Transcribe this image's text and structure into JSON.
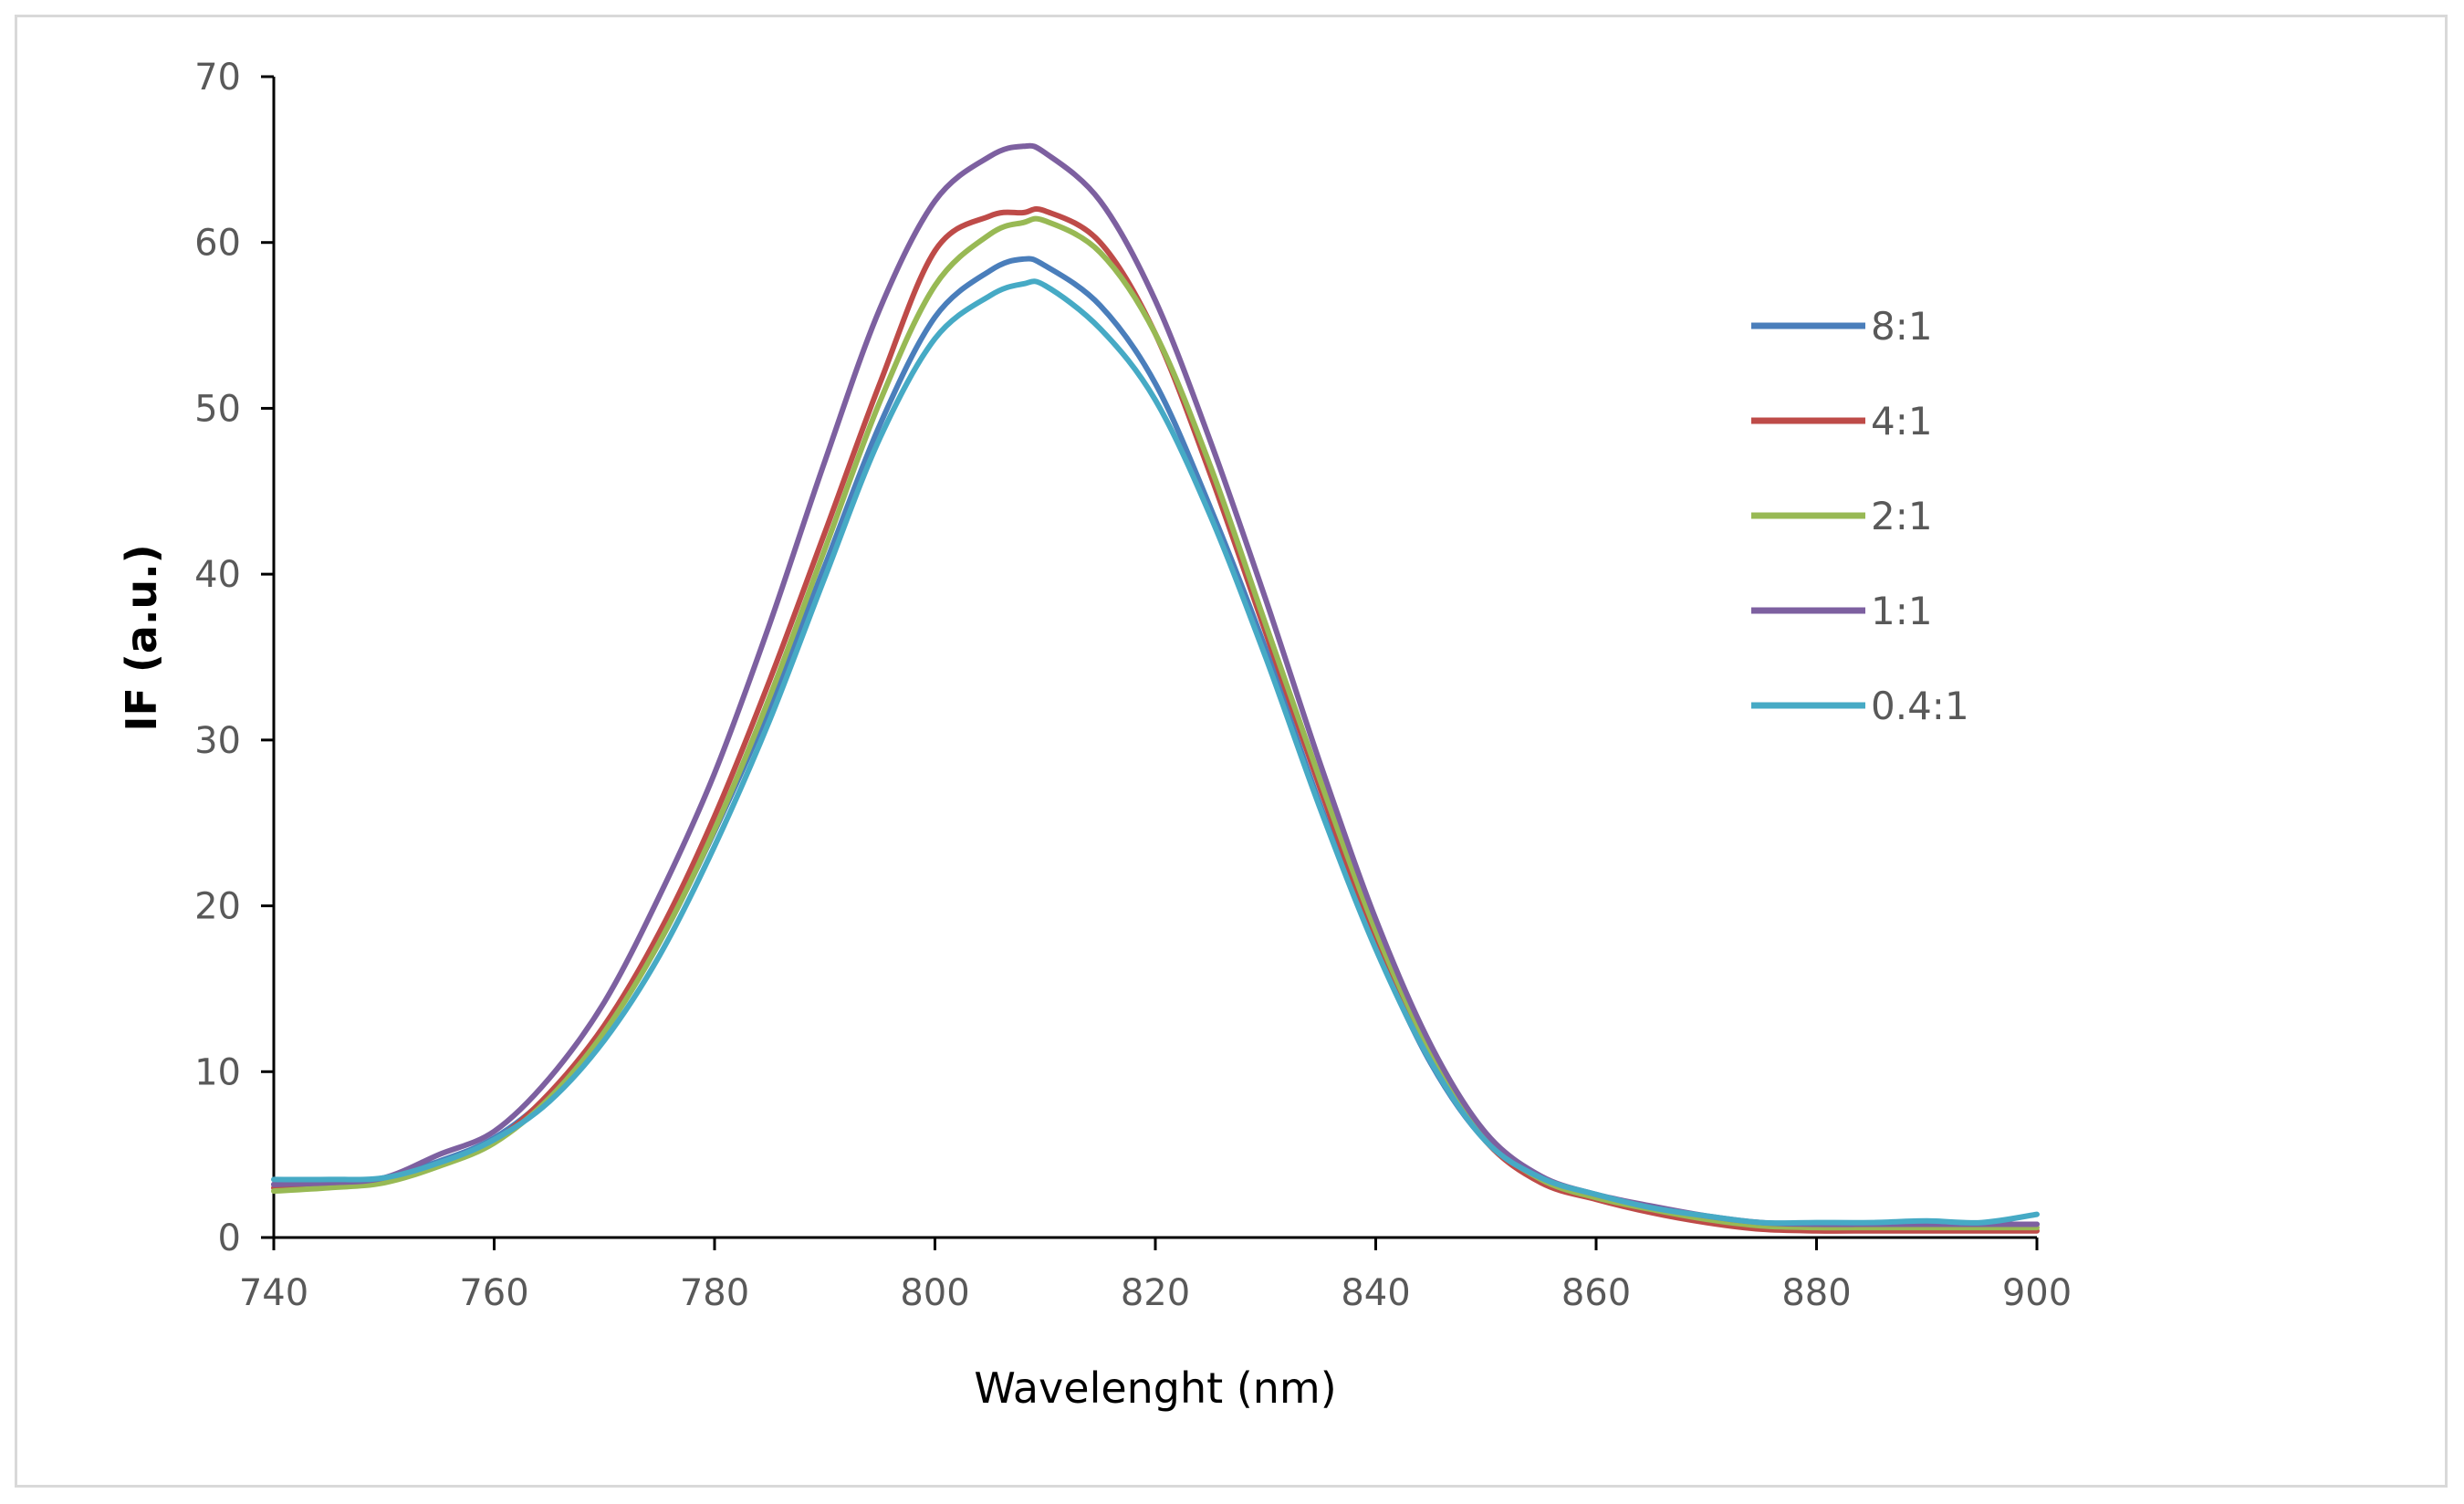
{
  "chart_data": {
    "type": "line",
    "title": "",
    "xlabel": "Wavelenght (nm)",
    "ylabel": "IF (a.u.)",
    "xlim": [
      740,
      900
    ],
    "ylim": [
      0,
      70
    ],
    "x_ticks": [
      740,
      760,
      780,
      800,
      820,
      840,
      860,
      880,
      900
    ],
    "y_ticks": [
      0,
      10,
      20,
      30,
      40,
      50,
      60,
      70
    ],
    "x_tick_labels": [
      "740",
      "760",
      "780",
      "800",
      "820",
      "840",
      "860",
      "880",
      "900"
    ],
    "y_tick_labels": [
      "0",
      "10",
      "20",
      "30",
      "40",
      "50",
      "60",
      "70"
    ],
    "grid": false,
    "legend_position": "right",
    "x": [
      740,
      745,
      750,
      755,
      760,
      765,
      770,
      775,
      780,
      785,
      790,
      795,
      800,
      805,
      808,
      810,
      815,
      820,
      825,
      830,
      835,
      840,
      845,
      850,
      855,
      860,
      865,
      870,
      875,
      880,
      885,
      890,
      895,
      900
    ],
    "series": [
      {
        "name": "8:1",
        "color": "#4a7ebb",
        "values": [
          3.2,
          3.3,
          3.6,
          4.6,
          6.0,
          8.6,
          12.5,
          17.8,
          24.5,
          32.0,
          40.5,
          49.0,
          55.5,
          58.3,
          59.0,
          58.6,
          56.2,
          51.5,
          44.0,
          35.5,
          26.0,
          17.5,
          10.5,
          5.8,
          3.5,
          2.5,
          1.8,
          1.2,
          0.8,
          0.7,
          0.7,
          0.8,
          0.8,
          0.8
        ]
      },
      {
        "name": "4:1",
        "color": "#be4b48",
        "values": [
          3.0,
          3.1,
          3.4,
          4.4,
          5.8,
          8.7,
          12.8,
          18.4,
          25.4,
          33.6,
          42.5,
          51.5,
          59.5,
          61.6,
          61.8,
          61.9,
          60.0,
          54.5,
          46.0,
          36.5,
          27.0,
          18.0,
          10.8,
          5.8,
          3.3,
          2.3,
          1.5,
          0.9,
          0.5,
          0.4,
          0.4,
          0.4,
          0.4,
          0.4
        ]
      },
      {
        "name": "2:1",
        "color": "#98b954",
        "values": [
          2.8,
          3.0,
          3.3,
          4.3,
          5.7,
          8.4,
          12.4,
          17.8,
          24.6,
          32.6,
          41.5,
          50.4,
          57.4,
          60.5,
          61.2,
          61.3,
          59.4,
          54.5,
          46.5,
          37.0,
          27.5,
          18.5,
          11.2,
          6.0,
          3.5,
          2.4,
          1.7,
          1.1,
          0.7,
          0.6,
          0.6,
          0.6,
          0.6,
          0.6
        ]
      },
      {
        "name": "1:1",
        "color": "#7d60a0",
        "values": [
          3.2,
          3.3,
          3.6,
          5.0,
          6.4,
          9.6,
          14.2,
          20.6,
          28.0,
          37.0,
          46.8,
          56.0,
          62.5,
          65.2,
          65.8,
          65.4,
          62.5,
          56.5,
          48.0,
          38.5,
          28.5,
          19.2,
          11.6,
          6.3,
          3.7,
          2.6,
          1.9,
          1.3,
          0.9,
          0.8,
          0.8,
          0.8,
          0.8,
          0.8
        ]
      },
      {
        "name": "0.4:1",
        "color": "#46aac5",
        "values": [
          3.5,
          3.5,
          3.6,
          4.5,
          5.9,
          8.2,
          11.9,
          17.0,
          23.6,
          31.2,
          39.8,
          48.2,
          54.2,
          56.8,
          57.5,
          57.4,
          54.8,
          50.5,
          43.5,
          35.0,
          25.8,
          17.4,
          10.6,
          5.8,
          3.6,
          2.6,
          1.8,
          1.3,
          0.9,
          0.9,
          0.9,
          1.0,
          0.9,
          1.4
        ]
      }
    ]
  }
}
